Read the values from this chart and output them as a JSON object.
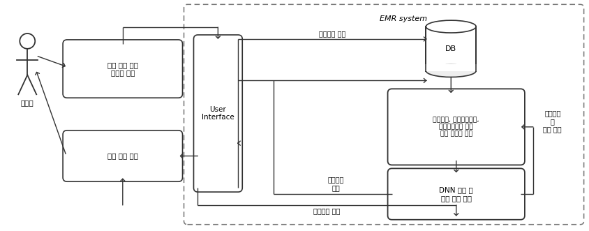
{
  "title": "EMR system",
  "bg_color": "#ffffff",
  "border_color": "#555555",
  "box_color": "#ffffff",
  "box_border": "#333333",
  "text_color": "#000000",
  "arrow_color": "#333333",
  "figsize": [
    8.44,
    3.31
  ],
  "dpi": 100,
  "actor_label": "의료진",
  "box1_label": "환자 검사 결과\n데이터 입력",
  "box2_label": "예측 결과 제공",
  "box3_label": "User\nInterface",
  "db_label": "DB",
  "box4_label": "혈액검사, 응급화학검사,\n임상화학검사 등의\n검사 데이터 추출",
  "box5_label": "DNN 학습 및\n예측 모델 생성",
  "label_check_save": "검사결과 저장",
  "label_pred_save": "예측결과\n저장",
  "label_pred_provide_bottom": "예측결과 제공",
  "label_transfer": "전이학습\n및\n모델 갱신"
}
